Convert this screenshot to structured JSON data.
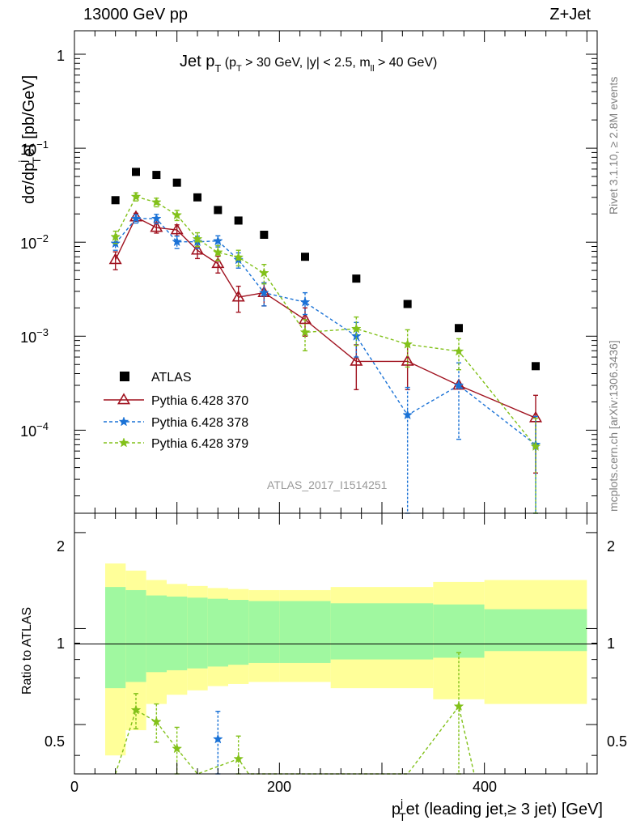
{
  "header": {
    "left": "13000 GeV pp",
    "right": "Z+Jet"
  },
  "side": {
    "rivet": "Rivet 3.1.10, ≥ 2.8M events",
    "mcplots": "mcplots.cern.ch [arXiv:1306.3436]"
  },
  "watermark": "ATLAS_2017_I1514251",
  "title": {
    "main": "Jet p",
    "main_sub": "T",
    "cut1": " (p",
    "cut1_sub": "T",
    "cut2": " > 30 GeV, |y| < 2.5, m",
    "cut2_sub": "ll",
    "cut3": " > 40 GeV)"
  },
  "ylabel": {
    "a": "dσ/dp",
    "sup": "j",
    "sub": "T",
    "b": "et [pb/GeV]"
  },
  "ratio_ylabel": "Ratio to ATLAS",
  "xlabel": {
    "a": "p",
    "sup": "j",
    "sub": "T",
    "b": "et (leading jet,≥ 3 jet) [GeV]"
  },
  "top_tick_labels": {
    "e0": "1",
    "em1": "10",
    "em1_exp": "−1",
    "em2": "10",
    "em2_exp": "−2",
    "em3": "10",
    "em3_exp": "−3",
    "em4": "10",
    "em4_exp": "−4"
  },
  "ratio_tick_labels": [
    "0.5",
    "1",
    "2"
  ],
  "x_tick_labels": [
    "0",
    "200",
    "400"
  ],
  "colors": {
    "atlas": "#000000",
    "p370": "#a0121f",
    "p378": "#1a72d6",
    "p379": "#82c11a",
    "band_inner": "#a0f8a0",
    "band_outer": "#ffff99"
  },
  "chart_data": {
    "type": "scatter",
    "x_range": [
      0,
      510
    ],
    "y_range": [
      1e-05,
      2
    ],
    "y_scale": "log",
    "ratio_range": [
      0.35,
      2.3
    ],
    "ratio_scale": "log",
    "bins": [
      [
        30,
        50
      ],
      [
        50,
        70
      ],
      [
        70,
        90
      ],
      [
        90,
        110
      ],
      [
        110,
        130
      ],
      [
        130,
        150
      ],
      [
        150,
        170
      ],
      [
        170,
        200
      ],
      [
        200,
        250
      ],
      [
        250,
        300
      ],
      [
        300,
        350
      ],
      [
        350,
        400
      ],
      [
        400,
        500
      ]
    ],
    "x": [
      40,
      60,
      80,
      100,
      120,
      140,
      160,
      185,
      225,
      275,
      325,
      375,
      450
    ],
    "band_inner": [
      0.35,
      0.32,
      0.27,
      0.26,
      0.25,
      0.24,
      0.23,
      0.22,
      0.22,
      0.2,
      0.2,
      0.19,
      0.15
    ],
    "band_outer": [
      0.6,
      0.52,
      0.42,
      0.38,
      0.36,
      0.34,
      0.33,
      0.32,
      0.32,
      0.35,
      0.35,
      0.4,
      0.42
    ],
    "legend_placement": "middle-left",
    "series": [
      {
        "name": "ATLAS",
        "key": "atlas",
        "style": "square",
        "values": [
          0.028,
          0.056,
          0.052,
          0.043,
          0.03,
          0.022,
          0.017,
          0.012,
          0.007,
          0.0041,
          0.0022,
          0.00122,
          0.00048
        ]
      },
      {
        "name": "Pythia 6.428 370",
        "key": "p370",
        "style": "triangle",
        "dash": false,
        "values": [
          0.0065,
          0.0185,
          0.0143,
          0.0135,
          0.0082,
          0.0059,
          0.0026,
          0.0029,
          0.0015,
          0.00054,
          0.00054,
          0.0003,
          0.000135
        ],
        "errors": [
          0.0014,
          0.0018,
          0.0018,
          0.0018,
          0.0015,
          0.0012,
          0.0008,
          0.0008,
          0.0005,
          0.00027,
          0.00027,
          null,
          0.0001
        ]
      },
      {
        "name": "Pythia 6.428 378",
        "key": "p378",
        "style": "star",
        "dash": true,
        "values": [
          0.0097,
          0.0178,
          0.0178,
          0.0101,
          0.0101,
          0.0103,
          0.0065,
          0.0029,
          0.0023,
          0.001,
          0.000145,
          0.0003,
          7e-05
        ],
        "errors": [
          0.0015,
          0.0018,
          0.002,
          0.0015,
          0.0015,
          0.0014,
          0.0012,
          0.0008,
          0.0006,
          0.0004,
          0.00014,
          0.00022,
          7e-05
        ]
      },
      {
        "name": "Pythia 6.428 379",
        "key": "p379",
        "style": "star",
        "dash": true,
        "values": [
          0.0114,
          0.0305,
          0.0266,
          0.0194,
          0.0108,
          0.0078,
          0.0069,
          0.0047,
          0.0011,
          0.0012,
          0.00082,
          0.00069,
          6.7e-05
        ],
        "errors": [
          0.0017,
          0.003,
          0.0028,
          0.0024,
          0.0018,
          0.0014,
          0.0013,
          0.0011,
          0.0004,
          0.0004,
          0.00035,
          0.00025,
          6.7e-05
        ]
      }
    ],
    "ratios": [
      {
        "key": "p378",
        "points": [
          [
            140,
            0.45,
            0.1
          ]
        ]
      },
      {
        "key": "p379",
        "points": [
          [
            40,
            0.35,
            null
          ],
          [
            60,
            0.555,
            0.07
          ],
          [
            80,
            0.51,
            0.07
          ],
          [
            100,
            0.42,
            0.07
          ],
          [
            120,
            0.33,
            null
          ],
          [
            160,
            0.39,
            0.07
          ],
          [
            170,
            0.33,
            null
          ],
          [
            325,
            0.33,
            null
          ],
          [
            375,
            0.57,
            0.27
          ],
          [
            390,
            0.33,
            null
          ]
        ]
      }
    ]
  }
}
